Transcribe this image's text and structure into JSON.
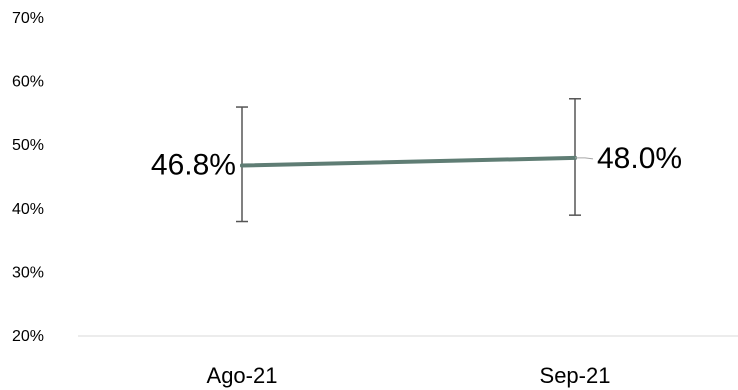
{
  "chart_data": {
    "type": "line",
    "categories": [
      "Ago-21",
      "Sep-21"
    ],
    "series": [
      {
        "values": [
          46.8,
          48.0
        ],
        "error_low": [
          38.0,
          39.0
        ],
        "error_high": [
          56.0,
          57.3
        ],
        "data_labels": [
          "46.8%",
          "48.0%"
        ],
        "color": "#5f7d74"
      }
    ],
    "ylim": [
      20,
      70
    ],
    "yticks": [
      20,
      30,
      40,
      50,
      60,
      70
    ],
    "ytick_labels": [
      "20%",
      "30%",
      "40%",
      "50%",
      "60%",
      "70%"
    ],
    "grid": false,
    "title": "",
    "xlabel": "",
    "ylabel": "",
    "colors": {
      "errorbar": "#555555",
      "axis": "#d9d9d9",
      "leader": "#a6a6a6"
    }
  }
}
